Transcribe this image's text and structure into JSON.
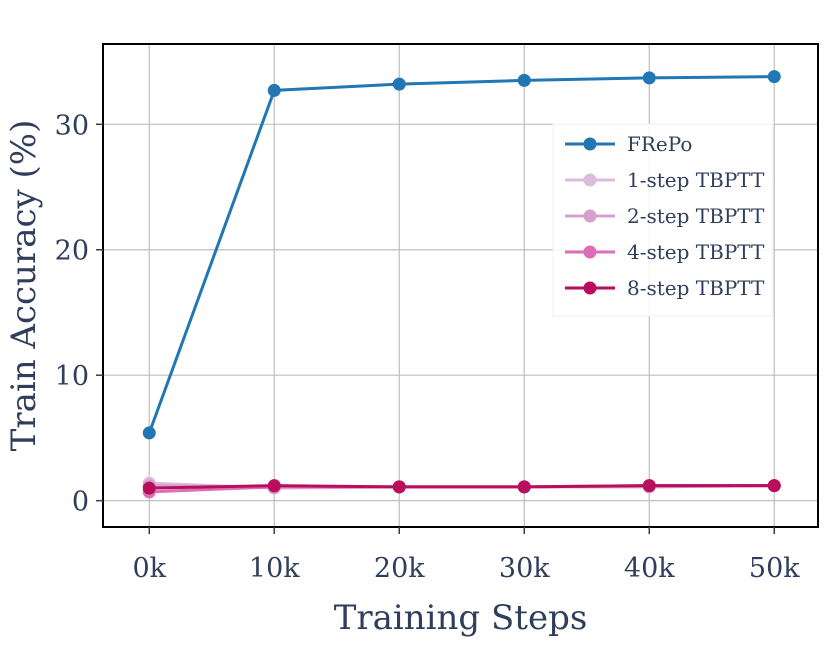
{
  "chart_data": {
    "type": "line",
    "xlabel": "Training Steps",
    "ylabel": "Train Accuracy (%)",
    "x": [
      0,
      10000,
      20000,
      30000,
      40000,
      50000
    ],
    "x_tick_values": [
      0,
      10000,
      20000,
      30000,
      40000,
      50000
    ],
    "x_tick_labels": [
      "0k",
      "10k",
      "20k",
      "30k",
      "40k",
      "50k"
    ],
    "y_tick_values": [
      0,
      10,
      20,
      30
    ],
    "y_tick_labels": [
      "0",
      "10",
      "20",
      "30"
    ],
    "xlim": [
      -3700,
      53500
    ],
    "ylim": [
      -2.1,
      36.4
    ],
    "grid": true,
    "legend_position": "upper-right",
    "series": [
      {
        "name": "FRePo",
        "color": "#2077b4",
        "values": [
          5.4,
          32.7,
          33.2,
          33.5,
          33.7,
          33.8
        ]
      },
      {
        "name": "1-step TBPTT",
        "color": "#dcbcdc",
        "values": [
          1.4,
          1.0,
          1.1,
          1.1,
          1.1,
          1.2
        ]
      },
      {
        "name": "2-step TBPTT",
        "color": "#d4a0d0",
        "values": [
          1.2,
          1.1,
          1.1,
          1.1,
          1.1,
          1.2
        ]
      },
      {
        "name": "4-step TBPTT",
        "color": "#dc6eb8",
        "values": [
          0.7,
          1.1,
          1.1,
          1.1,
          1.2,
          1.2
        ]
      },
      {
        "name": "8-step TBPTT",
        "color": "#b80e5c",
        "values": [
          1.0,
          1.2,
          1.1,
          1.1,
          1.2,
          1.2
        ]
      }
    ]
  }
}
